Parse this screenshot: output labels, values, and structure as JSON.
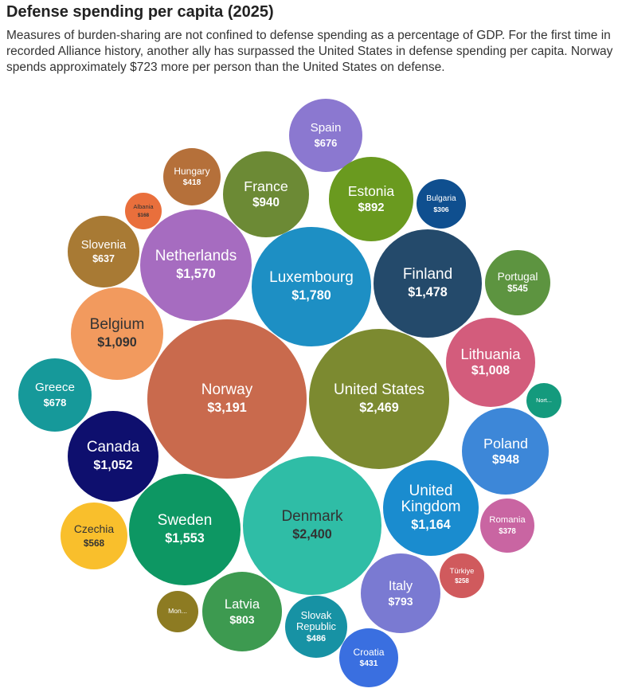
{
  "chart_data": {
    "type": "bubble",
    "title": "Defense spending per capita (2025)",
    "subtitle": "Measures of burden-sharing are not confined to defense spending as a percentage of GDP. For the first time in recorded Alliance history, another ally has surpassed the United States in defense spending per capita. Norway spends approximately $723 more per person than the United States on defense.",
    "categories": [
      "Spain",
      "Hungary",
      "France",
      "Estonia",
      "Bulgaria",
      "Albania",
      "Slovenia",
      "Netherlands",
      "Luxembourg",
      "Finland",
      "Portugal",
      "Belgium",
      "Lithuania",
      "Greece",
      "Norway",
      "United States",
      "Nort...",
      "Canada",
      "Poland",
      "Czechia",
      "Sweden",
      "Denmark",
      "United Kingdom",
      "Romania",
      "Türkiye",
      "Mon...",
      "Latvia",
      "Slovak Republic",
      "Italy",
      "Croatia"
    ],
    "values": [
      676,
      418,
      940,
      892,
      306,
      168,
      637,
      1570,
      1780,
      1478,
      545,
      1090,
      1008,
      678,
      3191,
      2469,
      154,
      1052,
      948,
      568,
      1553,
      2400,
      1164,
      378,
      258,
      216,
      803,
      486,
      793,
      431
    ],
    "value_labels": [
      "$676",
      "$418",
      "$940",
      "$892",
      "$306",
      "$168",
      "$637",
      "$1,570",
      "$1,780",
      "$1,478",
      "$545",
      "$1,090",
      "$1,008",
      "$678",
      "$3,191",
      "$2,469",
      null,
      "$1,052",
      "$948",
      "$568",
      "$1,553",
      "$2,400",
      "$1,164",
      "$378",
      "$258",
      null,
      "$803",
      "$486",
      "$793",
      "$431"
    ],
    "colors": [
      "#8b78d0",
      "#b5703a",
      "#6c8a35",
      "#6a9a1f",
      "#0f4f8f",
      "#e96f3c",
      "#a87a34",
      "#a66cc0",
      "#1d8fc4",
      "#244a6b",
      "#5d9440",
      "#f29a5e",
      "#d35c7c",
      "#16999a",
      "#c96a4d",
      "#7c8a30",
      "#149a7d",
      "#0e0f6e",
      "#3d87d8",
      "#f9bf2c",
      "#0d9763",
      "#2fbda6",
      "#1a8ccf",
      "#c965a2",
      "#d05a5d",
      "#8d7b22",
      "#3d9a50",
      "#1792a4",
      "#7a7ad2",
      "#3a6fe0"
    ]
  }
}
